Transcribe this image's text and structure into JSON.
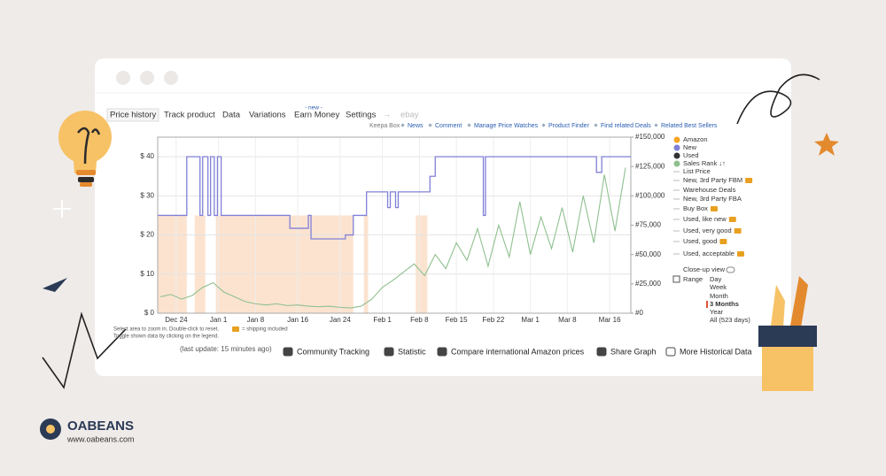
{
  "tabs": [
    "Price history",
    "Track product",
    "Data",
    "Variations",
    "Earn Money",
    "Settings",
    "→",
    "ebay"
  ],
  "new_badge": "- new -",
  "links": [
    "Keepa Box",
    "News",
    "Comment",
    "Manage Price Watches",
    "Product Finder",
    "Find related Deals",
    "Related Best Sellers"
  ],
  "legend": [
    "Amazon",
    "New",
    "Used",
    "Sales Rank ↓↑",
    "List Price",
    "New, 3rd Party FBM",
    "Warehouse Deals",
    "New, 3rd Party FBA",
    "Buy Box",
    "Used, like new",
    "Used, very good",
    "Used, good",
    "Used, acceptable"
  ],
  "closeup": "Close-up view",
  "range": {
    "label": "Range",
    "options": [
      "Day",
      "Week",
      "Month",
      "3 Months",
      "Year",
      "All (523 days)"
    ],
    "selected": 3
  },
  "notes": [
    "Select area to zoom in. Double-click to reset.",
    "= shipping included",
    "Toggle shown data by clicking on the legend."
  ],
  "last_update": "(last update: 15 minutes ago)",
  "toolbar": [
    "Community Tracking",
    "Statistic",
    "Compare international Amazon prices",
    "Share Graph",
    "More Historical Data"
  ],
  "brand": {
    "name": "OABEANS",
    "url": "www.oabeans.com"
  },
  "chart_data": {
    "type": "line",
    "xlim": [
      -3.5,
      86
    ],
    "xticks": [
      {
        "value": 0,
        "label": "Dec 24"
      },
      {
        "value": 8,
        "label": "Jan 1"
      },
      {
        "value": 15,
        "label": "Jan 8"
      },
      {
        "value": 23,
        "label": "Jan 16"
      },
      {
        "value": 31,
        "label": "Jan 24"
      },
      {
        "value": 39,
        "label": "Feb 1"
      },
      {
        "value": 46,
        "label": "Feb 8"
      },
      {
        "value": 53,
        "label": "Feb 15"
      },
      {
        "value": 60,
        "label": "Feb 22"
      },
      {
        "value": 67,
        "label": "Mar 1"
      },
      {
        "value": 74,
        "label": "Mar 8"
      },
      {
        "value": 82,
        "label": "Mar 16"
      }
    ],
    "ylim": [
      0,
      45
    ],
    "yticks": [
      {
        "value": 0,
        "label": "$ 0"
      },
      {
        "value": 10,
        "label": "$ 10"
      },
      {
        "value": 20,
        "label": "$ 20"
      },
      {
        "value": 30,
        "label": "$ 30"
      },
      {
        "value": 40,
        "label": "$ 40"
      }
    ],
    "y2lim": [
      0,
      150000
    ],
    "y2ticks": [
      {
        "value": 0,
        "label": "#0"
      },
      {
        "value": 25000,
        "label": "#25,000"
      },
      {
        "value": 50000,
        "label": "#50,000"
      },
      {
        "value": 75000,
        "label": "#75,000"
      },
      {
        "value": 100000,
        "label": "#100,000"
      },
      {
        "value": 125000,
        "label": "#125,000"
      },
      {
        "value": 150000,
        "label": "#150,000"
      }
    ],
    "grid": true,
    "shaded_ranges": [
      [
        -3.5,
        2
      ],
      [
        3.5,
        5.5
      ],
      [
        7.5,
        33.5
      ],
      [
        35.5,
        36.3
      ],
      [
        45.3,
        47.5
      ]
    ],
    "shade_color": "#fbe3d0",
    "series": [
      {
        "name": "New",
        "color": "#8080d8",
        "step": true,
        "x": [
          -3.5,
          2,
          4.5,
          5,
          6,
          6.5,
          7.2,
          7.8,
          8.5,
          21.5,
          25,
          25.5,
          30,
          32,
          33.5,
          36,
          40,
          40.5,
          41.5,
          42,
          46,
          48,
          49,
          58,
          58.1,
          58.5,
          79.5,
          80.5,
          86
        ],
        "values": [
          25,
          40,
          25,
          40,
          25,
          40,
          25,
          40,
          25,
          21.7,
          25,
          19,
          19,
          20,
          25,
          31,
          27,
          31,
          27,
          31,
          31,
          35,
          40,
          40,
          25,
          40,
          36,
          40,
          40
        ]
      },
      {
        "name": "Sales Rank",
        "color": "#8fc08f",
        "axis": "y2",
        "x": [
          -3,
          -1,
          1,
          3,
          5,
          7,
          9,
          11,
          13,
          15,
          17,
          19,
          21,
          23,
          25,
          27,
          29,
          31,
          33,
          35,
          37,
          39,
          41,
          43,
          45,
          47,
          49,
          51,
          53,
          55,
          57,
          59,
          61,
          63,
          65,
          67,
          69,
          71,
          73,
          75,
          77,
          79,
          81,
          83,
          85
        ],
        "values": [
          14000,
          16000,
          12000,
          15000,
          22000,
          26000,
          18000,
          14000,
          10000,
          8000,
          7000,
          8000,
          6500,
          7000,
          6000,
          5500,
          6000,
          5000,
          4500,
          6000,
          12000,
          22000,
          28000,
          35000,
          42000,
          32000,
          50000,
          38000,
          60000,
          45000,
          72000,
          40000,
          75000,
          48000,
          95000,
          50000,
          82000,
          55000,
          90000,
          52000,
          100000,
          60000,
          118000,
          70000,
          124000
        ]
      }
    ]
  }
}
